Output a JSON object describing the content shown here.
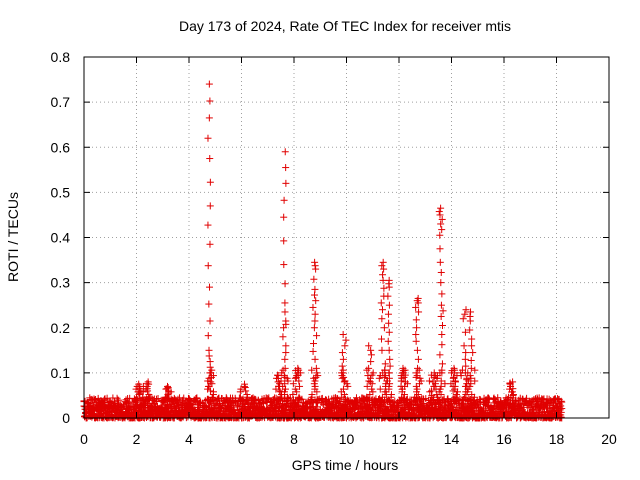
{
  "chart_data": {
    "type": "scatter",
    "title": "Day 173 of 2024, Rate Of TEC Index for receiver mtis",
    "xlabel": "GPS time / hours",
    "ylabel": "ROTI / TECUs",
    "xlim": [
      0,
      20
    ],
    "ylim": [
      0,
      0.8
    ],
    "xticks": [
      "0",
      "2",
      "4",
      "6",
      "8",
      "10",
      "12",
      "14",
      "16",
      "18",
      "20"
    ],
    "yticks": [
      "0",
      "0.1",
      "0.2",
      "0.3",
      "0.4",
      "0.5",
      "0.6",
      "0.7",
      "0.8"
    ],
    "grid": true,
    "marker": "+",
    "color": "#e00000",
    "data_extent_hours": [
      0,
      18.2
    ],
    "baseline_roti": [
      0.0,
      0.045
    ],
    "peak_events": [
      {
        "x": 2.1,
        "values": [
          0.055,
          0.065,
          0.075
        ]
      },
      {
        "x": 2.4,
        "values": [
          0.06,
          0.07,
          0.08
        ]
      },
      {
        "x": 3.2,
        "values": [
          0.055,
          0.065,
          0.07
        ]
      },
      {
        "x": 4.8,
        "values": [
          0.06,
          0.08,
          0.1,
          0.125,
          0.15,
          0.215,
          0.29,
          0.385,
          0.47,
          0.575,
          0.665,
          0.74
        ]
      },
      {
        "x": 6.1,
        "values": [
          0.06,
          0.075
        ]
      },
      {
        "x": 7.4,
        "values": [
          0.06,
          0.08,
          0.095
        ]
      },
      {
        "x": 7.65,
        "values": [
          0.09,
          0.13,
          0.16,
          0.2,
          0.215,
          0.255,
          0.34,
          0.445,
          0.52,
          0.59
        ]
      },
      {
        "x": 8.1,
        "values": [
          0.09,
          0.1,
          0.11
        ]
      },
      {
        "x": 8.8,
        "values": [
          0.09,
          0.13,
          0.165,
          0.2,
          0.23,
          0.26,
          0.285,
          0.33,
          0.345
        ]
      },
      {
        "x": 9.9,
        "values": [
          0.08,
          0.1,
          0.13,
          0.16,
          0.185
        ]
      },
      {
        "x": 10.9,
        "values": [
          0.08,
          0.11,
          0.14,
          0.16
        ]
      },
      {
        "x": 11.4,
        "values": [
          0.09,
          0.15,
          0.2,
          0.24,
          0.27,
          0.305,
          0.33,
          0.345
        ]
      },
      {
        "x": 11.6,
        "values": [
          0.1,
          0.13,
          0.17,
          0.21,
          0.25,
          0.29,
          0.305
        ]
      },
      {
        "x": 12.2,
        "values": [
          0.07,
          0.09,
          0.1,
          0.11
        ]
      },
      {
        "x": 12.7,
        "values": [
          0.09,
          0.13,
          0.17,
          0.2,
          0.235,
          0.255,
          0.265
        ]
      },
      {
        "x": 13.3,
        "values": [
          0.05,
          0.07,
          0.09,
          0.1
        ]
      },
      {
        "x": 13.6,
        "values": [
          0.1,
          0.14,
          0.185,
          0.225,
          0.25,
          0.3,
          0.345,
          0.405,
          0.43,
          0.45,
          0.465
        ]
      },
      {
        "x": 14.1,
        "values": [
          0.06,
          0.08,
          0.1,
          0.11
        ]
      },
      {
        "x": 14.5,
        "values": [
          0.07,
          0.1,
          0.13,
          0.16,
          0.22,
          0.24
        ]
      },
      {
        "x": 14.75,
        "values": [
          0.11,
          0.145,
          0.175,
          0.215,
          0.235
        ]
      },
      {
        "x": 16.3,
        "values": [
          0.05,
          0.065,
          0.075,
          0.08
        ]
      }
    ]
  }
}
